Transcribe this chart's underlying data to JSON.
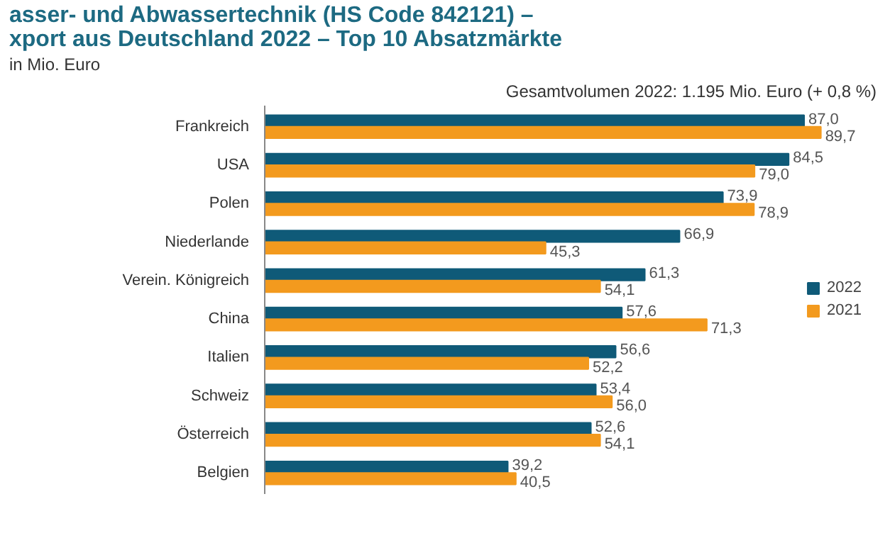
{
  "chart_data": {
    "type": "bar",
    "orientation": "horizontal",
    "title": "asser- und Abwassertechnik (HS Code 842121) –\nxport aus Deutschland 2022 – Top 10 Absatzmärkte",
    "annotations": [
      "in Mio. Euro",
      "Gesamtvolumen 2022: 1.195 Mio. Euro (+ 0,8 %)"
    ],
    "categories": [
      "Frankreich",
      "USA",
      "Polen",
      "Niederlande",
      "Verein. Königreich",
      "China",
      "Italien",
      "Schweiz",
      "Österreich",
      "Belgien"
    ],
    "series": [
      {
        "name": "2022",
        "color": "#0f5a78",
        "values": [
          87.0,
          84.5,
          73.9,
          66.9,
          61.3,
          57.6,
          56.6,
          53.4,
          52.6,
          39.2
        ],
        "value_labels": [
          "87,0",
          "84,5",
          "73,9",
          "66,9",
          "61,3",
          "57,6",
          "56,6",
          "53,4",
          "52,6",
          "39,2"
        ]
      },
      {
        "name": "2021",
        "color": "#f39a1e",
        "values": [
          89.7,
          79.0,
          78.9,
          45.3,
          54.1,
          71.3,
          52.2,
          56.0,
          54.1,
          40.5
        ],
        "value_labels": [
          "89,7",
          "79,0",
          "78,9",
          "45,3",
          "54,1",
          "71,3",
          "52,2",
          "56,0",
          "54,1",
          "40,5"
        ]
      }
    ],
    "legend": "right",
    "grid": false
  }
}
